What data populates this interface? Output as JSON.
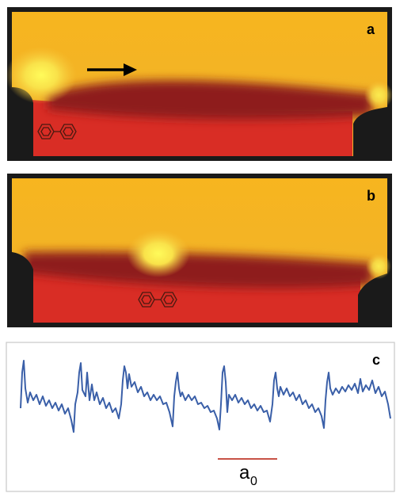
{
  "panels": [
    {
      "letter": "a"
    },
    {
      "letter": "b"
    },
    {
      "letter": "c"
    }
  ],
  "scale_bar": {
    "label": "a",
    "subscript": "0"
  },
  "colors": {
    "background_gold": "#f2b120",
    "dark_band": "#8e1c1a",
    "substrate_red": "#d92d25",
    "frame_black": "#1a1a1a",
    "trace_blue": "#3a5fa8",
    "scale_bar_red": "#c0392b"
  },
  "icons": {
    "molecule": "biphenyl-molecule-icon",
    "arrow": "right-arrow-icon"
  }
}
